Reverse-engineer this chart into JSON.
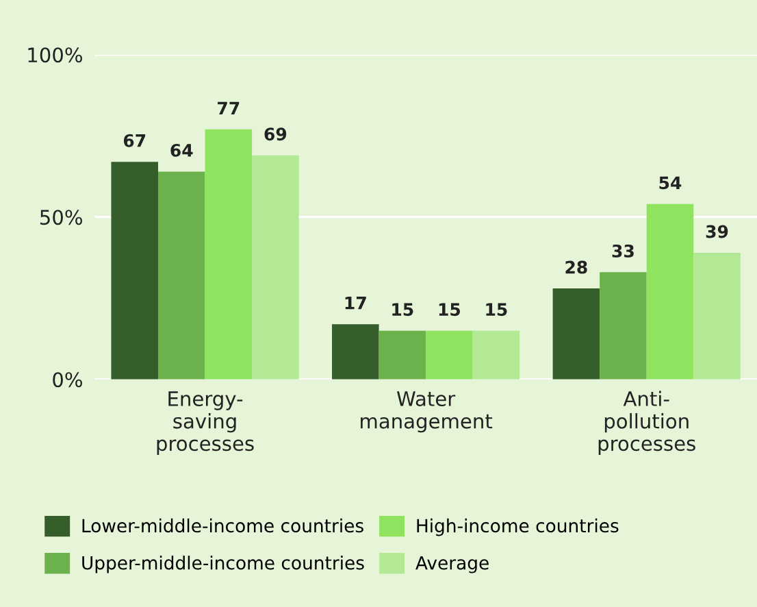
{
  "chart_data": {
    "type": "bar",
    "categories": [
      "Energy-\nsaving\nprocesses",
      "Water\nmanagement",
      "Anti-\npollution\nprocesses"
    ],
    "series": [
      {
        "name": "Lower-middle-income countries",
        "color": "#355e2a",
        "values": [
          67,
          17,
          28
        ]
      },
      {
        "name": "Upper-middle-income countries",
        "color": "#6cb24c",
        "values": [
          64,
          15,
          33
        ]
      },
      {
        "name": "High-income countries",
        "color": "#8fe35f",
        "values": [
          77,
          15,
          54
        ]
      },
      {
        "name": "Average",
        "color": "#b3e894",
        "values": [
          69,
          15,
          39
        ]
      }
    ],
    "ylim": [
      0,
      100
    ],
    "yticks": [
      {
        "value": 0,
        "label": "0%"
      },
      {
        "value": 50,
        "label": "50%"
      },
      {
        "value": 100,
        "label": "100%"
      }
    ],
    "grid": "y",
    "legend": "bottom",
    "data_labels": true
  }
}
